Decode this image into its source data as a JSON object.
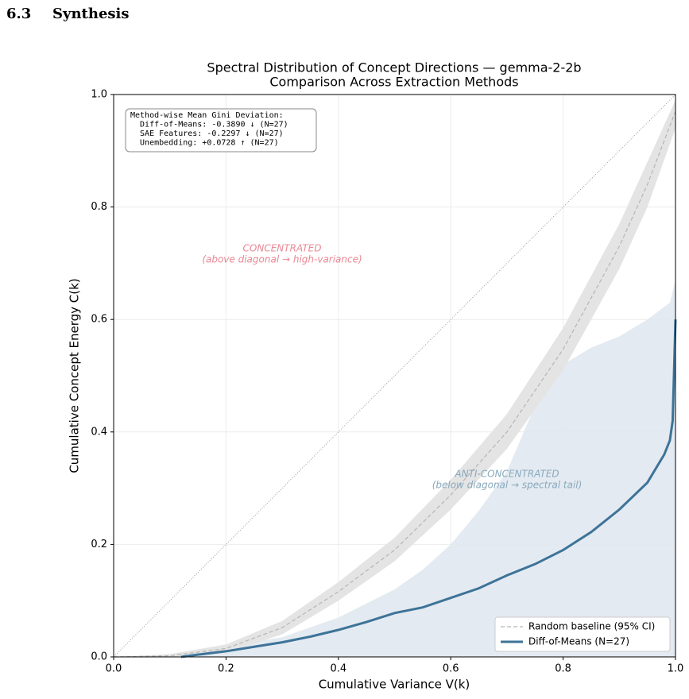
{
  "section": {
    "number": "6.3",
    "title": "Synthesis"
  },
  "chart_data": {
    "type": "line",
    "title": "Spectral Distribution of Concept Directions — gemma-2-2b",
    "subtitle": "Comparison Across Extraction Methods",
    "xlabel": "Cumulative Variance V(k)",
    "ylabel": "Cumulative Concept Energy C(k)",
    "xlim": [
      0,
      1
    ],
    "ylim": [
      0,
      1
    ],
    "xticks": [
      {
        "value": 0,
        "label": "0.0"
      },
      0.2,
      0.4,
      0.6,
      0.8,
      {
        "value": 1,
        "label": "1.0"
      }
    ],
    "yticks": [
      {
        "value": 0,
        "label": "0.0"
      },
      0.2,
      0.4,
      0.6,
      0.8,
      {
        "value": 1,
        "label": "1.0"
      }
    ],
    "grid": true,
    "diagonal": true,
    "legend": "lower right",
    "series": [
      {
        "name": "Random baseline (95% CI)",
        "color": "#b5b5b5",
        "style": "dashed",
        "band_color": "#e4e4e4",
        "x": [
          0,
          0.1,
          0.2,
          0.3,
          0.4,
          0.5,
          0.6,
          0.7,
          0.8,
          0.9,
          0.95,
          1.0
        ],
        "values": [
          0,
          0.002,
          0.015,
          0.052,
          0.116,
          0.19,
          0.288,
          0.4,
          0.547,
          0.73,
          0.84,
          0.97
        ],
        "lower": [
          0,
          0,
          0.008,
          0.04,
          0.1,
          0.17,
          0.262,
          0.37,
          0.51,
          0.69,
          0.8,
          0.94
        ],
        "upper": [
          0,
          0.005,
          0.022,
          0.064,
          0.133,
          0.212,
          0.315,
          0.432,
          0.585,
          0.77,
          0.88,
          0.99
        ]
      },
      {
        "name": "Diff-of-Means (N=27)",
        "color": "#3d7398",
        "style": "solid",
        "x": [
          0.12,
          0.15,
          0.2,
          0.25,
          0.3,
          0.35,
          0.4,
          0.45,
          0.5,
          0.55,
          0.6,
          0.65,
          0.7,
          0.75,
          0.8,
          0.85,
          0.9,
          0.95,
          0.98,
          0.99,
          0.995,
          1.0
        ],
        "values": [
          0,
          0.004,
          0.01,
          0.018,
          0.026,
          0.036,
          0.048,
          0.062,
          0.078,
          0.088,
          0.105,
          0.122,
          0.145,
          0.165,
          0.19,
          0.222,
          0.262,
          0.31,
          0.36,
          0.385,
          0.42,
          0.6
        ]
      }
    ],
    "fill_area": {
      "color": "#dfe6ef",
      "x": [
        0.12,
        0.2,
        0.3,
        0.4,
        0.5,
        0.55,
        0.6,
        0.65,
        0.7,
        0.73,
        0.76,
        0.8,
        0.85,
        0.9,
        0.95,
        0.99,
        1.0
      ],
      "values": [
        0,
        0.02,
        0.035,
        0.07,
        0.12,
        0.155,
        0.2,
        0.26,
        0.33,
        0.4,
        0.47,
        0.52,
        0.55,
        0.57,
        0.6,
        0.63,
        0.67
      ]
    },
    "annotations": [
      {
        "lines": [
          "CONCENTRATED",
          "(above diagonal → high-variance)"
        ],
        "color": "#e88894"
      },
      {
        "lines": [
          "ANTI-CONCENTRATED",
          "(below diagonal → spectral tail)"
        ],
        "color": "#88a9bc"
      }
    ],
    "info_box": [
      "Method-wise Mean Gini Deviation:",
      "  Diff-of-Means: -0.3890 ↓ (N=27)",
      "  SAE Features: -0.2297 ↓ (N=27)",
      "  Unembedding: +0.0728 ↑ (N=27)"
    ]
  }
}
